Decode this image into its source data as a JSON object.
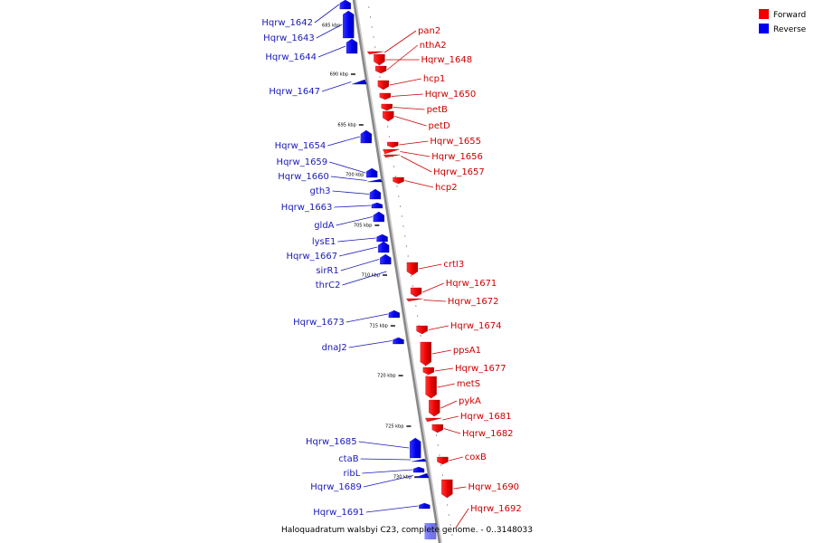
{
  "title": "Haloquadratum walsbyi C23, complete genome. - 0..3148033",
  "legend": [
    {
      "label": "Forward",
      "color": "#ee0000"
    },
    {
      "label": "Reverse",
      "color": "#0000ee"
    }
  ],
  "colors": {
    "forward": "#ee0000",
    "reverse": "#0000ee",
    "forward_label": "#cc0000",
    "reverse_label": "#1a1ab8",
    "backbone": "#888888"
  },
  "tick_labels": [
    "685 kbp",
    "690 kbp",
    "695 kbp",
    "700 kbp",
    "705 kbp",
    "710 kbp",
    "715 kbp",
    "720 kbp",
    "725 kbp",
    "730 kbp"
  ],
  "forward_genes": [
    "pan2",
    "nthA2",
    "Hqrw_1648",
    "hcp1",
    "Hqrw_1650",
    "petB",
    "petD",
    "Hqrw_1655",
    "Hqrw_1656",
    "Hqrw_1657",
    "hcp2",
    "crtI3",
    "Hqrw_1671",
    "Hqrw_1672",
    "Hqrw_1674",
    "ppsA1",
    "Hqrw_1677",
    "metS",
    "pykA",
    "Hqrw_1681",
    "Hqrw_1682",
    "coxB",
    "Hqrw_1690",
    "Hqrw_1692"
  ],
  "reverse_genes": [
    "Hqrw_1642",
    "Hqrw_1643",
    "Hqrw_1644",
    "Hqrw_1647",
    "Hqrw_1654",
    "Hqrw_1659",
    "Hqrw_1660",
    "gth3",
    "Hqrw_1663",
    "gldA",
    "lysE1",
    "Hqrw_1667",
    "sirR1",
    "thrC2",
    "Hqrw_1673",
    "dnaJ2",
    "Hqrw_1685",
    "ctaB",
    "ribL",
    "Hqrw_1689",
    "Hqrw_1691"
  ]
}
